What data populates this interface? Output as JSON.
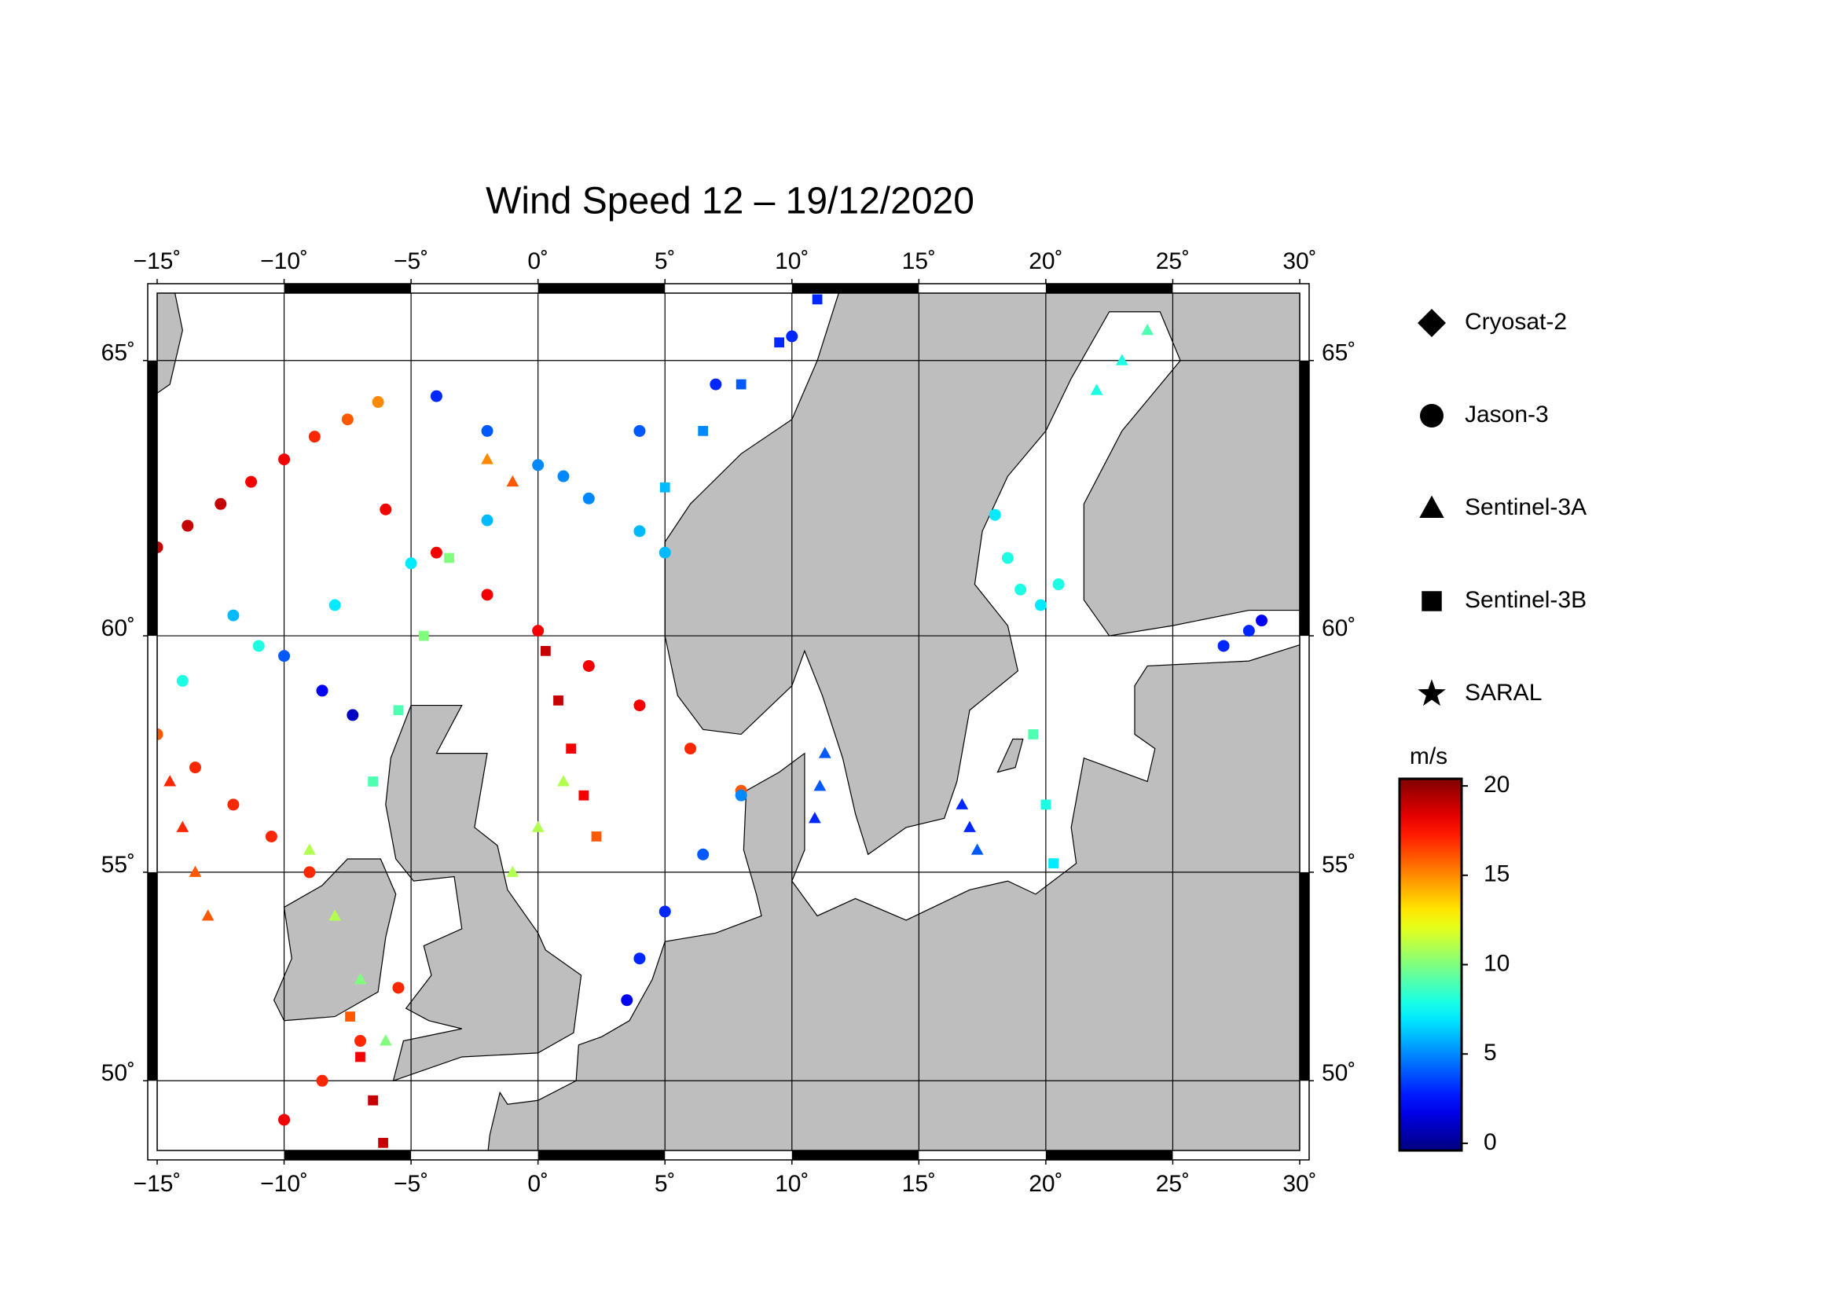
{
  "chart_data": {
    "type": "map",
    "title": "Wind Speed 12 – 19/12/2020",
    "xlim": [
      -15,
      30
    ],
    "ylim": [
      48.2,
      66.1
    ],
    "xticks": [
      {
        "value": -15,
        "label": "−15˚"
      },
      {
        "value": -10,
        "label": "−10˚"
      },
      {
        "value": -5,
        "label": "−5˚"
      },
      {
        "value": 0,
        "label": "0˚"
      },
      {
        "value": 5,
        "label": "5˚"
      },
      {
        "value": 10,
        "label": "10˚"
      },
      {
        "value": 15,
        "label": "15˚"
      },
      {
        "value": 20,
        "label": "20˚"
      },
      {
        "value": 25,
        "label": "25˚"
      },
      {
        "value": 30,
        "label": "30˚"
      }
    ],
    "yticks": [
      {
        "value": 50,
        "label": "50˚"
      },
      {
        "value": 55,
        "label": "55˚"
      },
      {
        "value": 60,
        "label": "60˚"
      },
      {
        "value": 65,
        "label": "65˚"
      }
    ],
    "grid": true,
    "series": [
      {
        "name": "Cryosat-2",
        "marker": "diamond",
        "lon": [],
        "lat": [],
        "values": []
      },
      {
        "name": "Jason-3",
        "marker": "circle",
        "lon": [
          -15,
          -13.8,
          -12.5,
          -11.3,
          -10,
          -8.8,
          -7.5,
          -6.3,
          -14,
          -11,
          -8,
          -5,
          -2,
          1,
          4,
          7,
          10,
          -4,
          -2,
          0,
          2,
          4,
          5,
          -6,
          -4,
          -2,
          0,
          2,
          4,
          6,
          8,
          8,
          6.5,
          5,
          4,
          3.5,
          -12,
          -10,
          -8.5,
          -7.3,
          -15,
          -13.5,
          -12,
          -10.5,
          -9,
          18,
          18.5,
          19,
          19.8,
          20.5,
          27,
          28,
          28.5,
          -10,
          -8.5,
          -7,
          -5.5
        ],
        "lat": [
          61.7,
          62.1,
          62.5,
          62.9,
          63.3,
          63.7,
          64.0,
          64.3,
          59.1,
          59.8,
          60.6,
          61.4,
          62.2,
          63.0,
          63.8,
          64.6,
          65.4,
          64.4,
          63.8,
          63.2,
          62.6,
          62.0,
          61.6,
          62.4,
          61.6,
          60.8,
          60.1,
          59.4,
          58.6,
          57.7,
          56.8,
          56.7,
          55.4,
          54.1,
          53.0,
          52.0,
          60.4,
          59.6,
          58.9,
          58.4,
          58,
          57.3,
          56.5,
          55.8,
          55,
          62.3,
          61.5,
          60.9,
          60.6,
          61.0,
          59.8,
          60.1,
          60.3,
          49,
          50,
          51,
          52.3
        ],
        "values": [
          19,
          19,
          19,
          18,
          18,
          17,
          16,
          15,
          8,
          8,
          7,
          7,
          6,
          5,
          4,
          3,
          3,
          3,
          4,
          5,
          5,
          6,
          6,
          18,
          18,
          18,
          18,
          18,
          18,
          17,
          16,
          5,
          4,
          3,
          3,
          2,
          6,
          4,
          2,
          1,
          16,
          17,
          17,
          17,
          17,
          7,
          8,
          8,
          7,
          8,
          3,
          3,
          2,
          18,
          17,
          17,
          17
        ]
      },
      {
        "name": "Sentinel-3A",
        "marker": "triangle",
        "lon": [
          -14.5,
          -14,
          -13.5,
          -13,
          -9,
          -8,
          -7,
          -6,
          11.3,
          11.1,
          10.9,
          16.7,
          17,
          17.3,
          -2,
          -1,
          1,
          0,
          -1,
          22,
          23,
          24
        ],
        "lat": [
          57,
          56,
          55,
          54,
          55.5,
          54,
          52.5,
          51,
          57.6,
          56.9,
          56.2,
          56.5,
          56,
          55.5,
          63.3,
          62.9,
          57,
          56,
          55,
          64.5,
          65.0,
          65.5
        ],
        "values": [
          17,
          17,
          16,
          16,
          11,
          11,
          10,
          10,
          4,
          4,
          3,
          3,
          3,
          4,
          15,
          16,
          11,
          11,
          11,
          8,
          8,
          9
        ]
      },
      {
        "name": "Sentinel-3B",
        "marker": "square",
        "lon": [
          -6.1,
          -6.5,
          -7,
          -7.4,
          0.3,
          0.8,
          1.3,
          1.8,
          2.3,
          5,
          6.5,
          8,
          9.5,
          11,
          -6.5,
          -5.5,
          -4.5,
          -3.5,
          19.5,
          20,
          20.3
        ],
        "lat": [
          48.4,
          49.5,
          50.6,
          51.6,
          59.7,
          58.7,
          57.7,
          56.7,
          55.8,
          62.8,
          63.8,
          64.6,
          65.3,
          66,
          57,
          58.5,
          60,
          61.5,
          58,
          56.5,
          55.2
        ],
        "values": [
          19,
          19,
          18,
          16,
          19,
          19,
          18,
          18,
          16,
          6,
          5,
          4,
          3,
          3,
          9,
          9,
          10,
          10,
          9,
          8,
          7
        ]
      },
      {
        "name": "SARAL",
        "marker": "star",
        "lon": [],
        "lat": [],
        "values": []
      }
    ],
    "colorbar": {
      "label": "m/s",
      "lim": [
        -0.4,
        20.4
      ],
      "ticks": [
        0,
        5,
        10,
        15,
        20
      ]
    }
  }
}
